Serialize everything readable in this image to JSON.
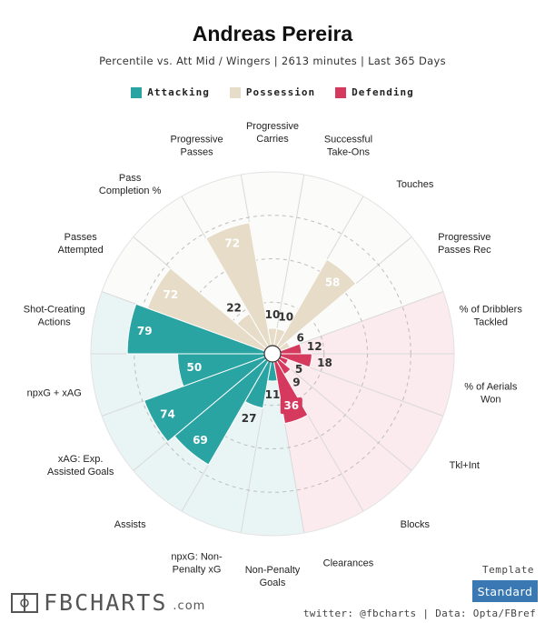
{
  "header": {
    "title": "Andreas Pereira",
    "subtitle": "Percentile vs. Att Mid / Wingers | 2613 minutes | Last 365 Days"
  },
  "legend": [
    {
      "label": "Attacking",
      "color": "#2aa3a3"
    },
    {
      "label": "Possession",
      "color": "#e6dcc8"
    },
    {
      "label": "Defending",
      "color": "#d6395e"
    }
  ],
  "chart_data": {
    "type": "polar-bar",
    "title": "Andreas Pereira",
    "range": [
      0,
      100
    ],
    "series": [
      {
        "name": "Attacking",
        "color": "#2aa3a3",
        "bg": "#e9f5f5",
        "categories": [
          "Non-Penalty Goals",
          "npxG: Non-Penalty xG",
          "Assists",
          "xAG: Exp. Assisted Goals",
          "npxG + xAG",
          "Shot-Creating Actions"
        ],
        "values": [
          11,
          27,
          69,
          74,
          50,
          79
        ]
      },
      {
        "name": "Possession",
        "color": "#e6dcc8",
        "bg": "#fbfbf9",
        "categories": [
          "Passes Attempted",
          "Pass Completion %",
          "Progressive Passes",
          "Progressive Carries",
          "Successful Take-Ons",
          "Touches",
          "Progressive Passes Rec"
        ],
        "values": [
          72,
          22,
          72,
          10,
          10,
          58,
          6
        ]
      },
      {
        "name": "Defending",
        "color": "#d6395e",
        "bg": "#fbeaee",
        "categories": [
          "% of Dribblers Tackled",
          "% of Aerials Won",
          "Tkl+Int",
          "Blocks",
          "Clearances"
        ],
        "values": [
          12,
          18,
          5,
          9,
          36
        ]
      }
    ],
    "categories_display": [
      "Non-Penalty\nGoals",
      "npxG: Non-\nPenalty xG",
      "Assists",
      "xAG: Exp.\nAssisted Goals",
      "npxG + xAG",
      "Shot-Creating\nActions",
      "Passes\nAttempted",
      "Pass\nCompletion %",
      "Progressive\nPasses",
      "Progressive\nCarries",
      "Successful\nTake-Ons",
      "Touches",
      "Progressive\nPasses Rec",
      "% of Dribblers\nTackled",
      "% of Aerials\nWon",
      "Tkl+Int",
      "Blocks",
      "Clearances"
    ],
    "values_display": [
      11,
      27,
      69,
      74,
      50,
      79,
      72,
      22,
      72,
      10,
      10,
      58,
      6,
      12,
      18,
      5,
      9,
      36
    ],
    "gridlines": [
      25,
      50,
      75,
      100
    ]
  },
  "footer": {
    "brand": "FBCHARTS",
    "brand_suffix": ".com",
    "template_label": "Template",
    "template_value": "Standard",
    "credit": "twitter: @fbcharts | Data: Opta/FBref"
  }
}
